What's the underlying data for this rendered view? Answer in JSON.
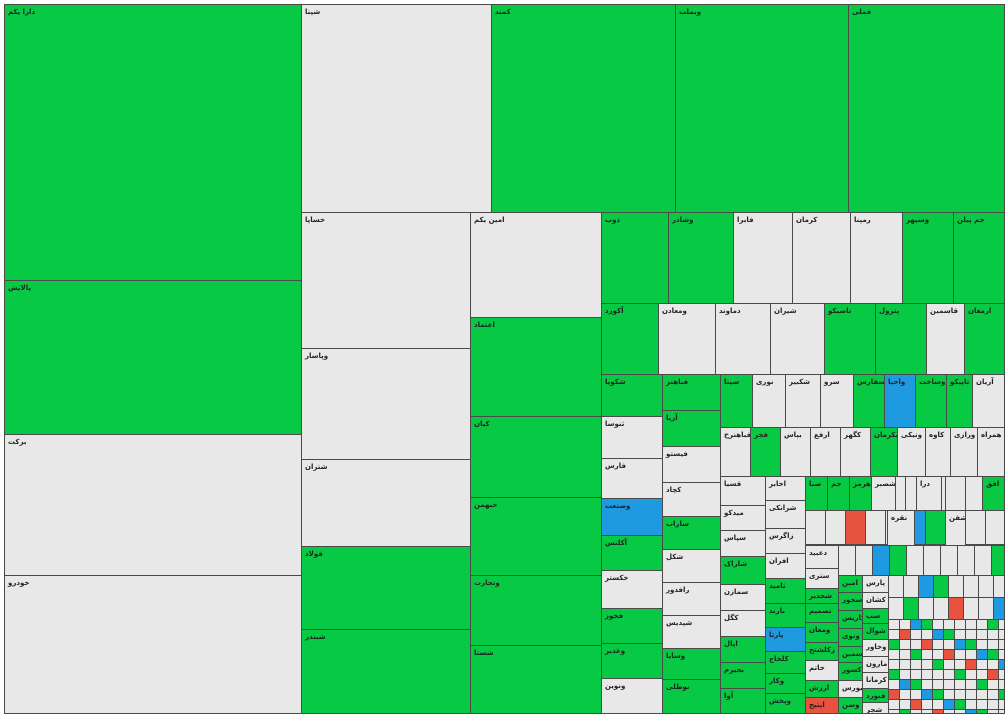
{
  "cells": [
    {
      "label": "دارا یکم",
      "color": "#08c944"
    },
    {
      "label": "پالایش",
      "color": "#08c944"
    },
    {
      "label": "برکت",
      "color": "#e8e8e8"
    },
    {
      "label": "خودرو",
      "color": "#e8e8e8"
    },
    {
      "label": "شپنا",
      "color": "#e8e8e8"
    },
    {
      "label": "کمند",
      "color": "#08c944"
    },
    {
      "label": "وبملت",
      "color": "#08c944"
    },
    {
      "label": "فملی",
      "color": "#08c944"
    },
    {
      "label": "خساپا",
      "color": "#e8e8e8"
    },
    {
      "label": "وپاسار",
      "color": "#e8e8e8"
    },
    {
      "label": "شتران",
      "color": "#e8e8e8"
    },
    {
      "label": "فولاد",
      "color": "#08c944"
    },
    {
      "label": "شبندر",
      "color": "#08c944"
    },
    {
      "label": "امین یکم",
      "color": "#e8e8e8"
    },
    {
      "label": "اعتماد",
      "color": "#08c944"
    },
    {
      "label": "کیان",
      "color": "#08c944"
    },
    {
      "label": "خبهمن",
      "color": "#08c944"
    },
    {
      "label": "وتجارت",
      "color": "#08c944"
    },
    {
      "label": "شستا",
      "color": "#08c944"
    },
    {
      "label": "ذوب",
      "color": "#08c944"
    },
    {
      "label": "وشادر",
      "color": "#08c944"
    },
    {
      "label": "فابرا",
      "color": "#e8e8e8"
    },
    {
      "label": "کرمان",
      "color": "#e8e8e8"
    },
    {
      "label": "رمپنا",
      "color": "#e8e8e8"
    },
    {
      "label": "وسپهر",
      "color": "#08c944"
    },
    {
      "label": "جم پیلن",
      "color": "#08c944"
    },
    {
      "label": "آکورد",
      "color": "#08c944"
    },
    {
      "label": "ومعادن",
      "color": "#e8e8e8"
    },
    {
      "label": "دماوند",
      "color": "#e8e8e8"
    },
    {
      "label": "شیران",
      "color": "#e8e8e8"
    },
    {
      "label": "تاصیکو",
      "color": "#08c944"
    },
    {
      "label": "پترول",
      "color": "#08c944"
    },
    {
      "label": "قاسمین",
      "color": "#e8e8e8"
    },
    {
      "label": "ارمغان",
      "color": "#08c944"
    },
    {
      "label": "شکویا",
      "color": "#08c944"
    },
    {
      "label": "ثنوسا",
      "color": "#e8e8e8"
    },
    {
      "label": "فارس",
      "color": "#e8e8e8"
    },
    {
      "label": "وصنعت",
      "color": "#1e9be0"
    },
    {
      "label": "آکلنس",
      "color": "#08c944"
    },
    {
      "label": "خکستر",
      "color": "#e8e8e8"
    },
    {
      "label": "فخوز",
      "color": "#08c944"
    },
    {
      "label": "وغدیر",
      "color": "#08c944"
    },
    {
      "label": "ونوین",
      "color": "#e8e8e8"
    },
    {
      "label": "فباهنر",
      "color": "#08c944"
    },
    {
      "label": "آریا",
      "color": "#08c944"
    },
    {
      "label": "فیستو",
      "color": "#e8e8e8"
    },
    {
      "label": "کچاد",
      "color": "#e8e8e8"
    },
    {
      "label": "ساراب",
      "color": "#08c944"
    },
    {
      "label": "شکل",
      "color": "#e8e8e8"
    },
    {
      "label": "رافدور",
      "color": "#e8e8e8"
    },
    {
      "label": "شپدیس",
      "color": "#e8e8e8"
    },
    {
      "label": "وسایا",
      "color": "#08c944"
    },
    {
      "label": "نوطلی",
      "color": "#08c944"
    },
    {
      "label": "سیتا",
      "color": "#08c944"
    },
    {
      "label": "نوری",
      "color": "#e8e8e8"
    },
    {
      "label": "شکبیر",
      "color": "#e8e8e8"
    },
    {
      "label": "سرو",
      "color": "#e8e8e8"
    },
    {
      "label": "سفارس",
      "color": "#08c944"
    },
    {
      "label": "واحیا",
      "color": "#1e9be0"
    },
    {
      "label": "وساخت",
      "color": "#08c944"
    },
    {
      "label": "تاپیکو",
      "color": "#08c944"
    },
    {
      "label": "آریان",
      "color": "#e8e8e8"
    },
    {
      "label": "فباهنرح",
      "color": "#e8e8e8"
    },
    {
      "label": "فجر",
      "color": "#08c944"
    },
    {
      "label": "بپاس",
      "color": "#e8e8e8"
    },
    {
      "label": "ارفع",
      "color": "#e8e8e8"
    },
    {
      "label": "کگهر",
      "color": "#e8e8e8"
    },
    {
      "label": "بکرمان",
      "color": "#08c944"
    },
    {
      "label": "ونیکی",
      "color": "#e8e8e8"
    },
    {
      "label": "کاوه",
      "color": "#e8e8e8"
    },
    {
      "label": "ورازی",
      "color": "#e8e8e8"
    },
    {
      "label": "همراه",
      "color": "#e8e8e8"
    },
    {
      "label": "قسیا",
      "color": "#e8e8e8"
    },
    {
      "label": "میدکو",
      "color": "#e8e8e8"
    },
    {
      "label": "سپاس",
      "color": "#e8e8e8"
    },
    {
      "label": "شاراک",
      "color": "#08c944"
    },
    {
      "label": "سمازن",
      "color": "#e8e8e8"
    },
    {
      "label": "کگل",
      "color": "#e8e8e8"
    },
    {
      "label": "اپال",
      "color": "#08c944"
    },
    {
      "label": "بجیرم",
      "color": "#08c944"
    },
    {
      "label": "آوا",
      "color": "#08c944"
    },
    {
      "label": "اخابر",
      "color": "#e8e8e8"
    },
    {
      "label": "شرانکی",
      "color": "#e8e8e8"
    },
    {
      "label": "زاگرس",
      "color": "#e8e8e8"
    },
    {
      "label": "افران",
      "color": "#e8e8e8"
    },
    {
      "label": "ثامید",
      "color": "#08c944"
    },
    {
      "label": "بارند",
      "color": "#08c944"
    },
    {
      "label": "پارتا",
      "color": "#1e9be0"
    },
    {
      "label": "کلخاج",
      "color": "#08c944"
    },
    {
      "label": "وکار",
      "color": "#08c944"
    },
    {
      "label": "وپخش",
      "color": "#08c944"
    },
    {
      "label": "دعبید",
      "color": "#e8e8e8"
    },
    {
      "label": "ستری",
      "color": "#e8e8e8"
    },
    {
      "label": "شجدیر",
      "color": "#08c944"
    },
    {
      "label": "تصمیم",
      "color": "#08c944"
    },
    {
      "label": "ومعان",
      "color": "#08c944"
    },
    {
      "label": "زکلشتح",
      "color": "#08c944"
    },
    {
      "label": "خاتم",
      "color": "#e8e8e8"
    },
    {
      "label": "ارزش",
      "color": "#08c944"
    },
    {
      "label": "اپتیح",
      "color": "#e8533f"
    },
    {
      "label": "امین",
      "color": "#08c944"
    },
    {
      "label": "سخوز",
      "color": "#08c944"
    },
    {
      "label": "کاریس",
      "color": "#08c944"
    },
    {
      "label": "ونوی",
      "color": "#08c944"
    },
    {
      "label": "سمین",
      "color": "#08c944"
    },
    {
      "label": "کسور",
      "color": "#08c944"
    },
    {
      "label": "بورس",
      "color": "#e8e8e8"
    },
    {
      "label": "وسن",
      "color": "#08c944"
    },
    {
      "label": "پارس",
      "color": "#e8e8e8"
    },
    {
      "label": "کشان",
      "color": "#e8e8e8"
    },
    {
      "label": "سپ",
      "color": "#08c944"
    },
    {
      "label": "شوال",
      "color": "#08c944"
    },
    {
      "label": "وخاور",
      "color": "#e8e8e8"
    },
    {
      "label": "مارون",
      "color": "#e8e8e8"
    },
    {
      "label": "کرمانا",
      "color": "#e8e8e8"
    },
    {
      "label": "فنورد",
      "color": "#08c944"
    },
    {
      "label": "شجر",
      "color": "#e8e8e8"
    },
    {
      "label": "صبا",
      "color": "#08c944"
    },
    {
      "label": "جم",
      "color": "#08c944"
    },
    {
      "label": "هرمز",
      "color": "#08c944"
    },
    {
      "label": "شصبر",
      "color": "#e8e8e8"
    },
    {
      "label": "درا",
      "color": "#e8e8e8"
    },
    {
      "label": "افق",
      "color": "#08c944"
    },
    {
      "label": "نقره",
      "color": "#e8e8e8"
    },
    {
      "label": "شفن",
      "color": "#e8e8e8"
    }
  ]
}
